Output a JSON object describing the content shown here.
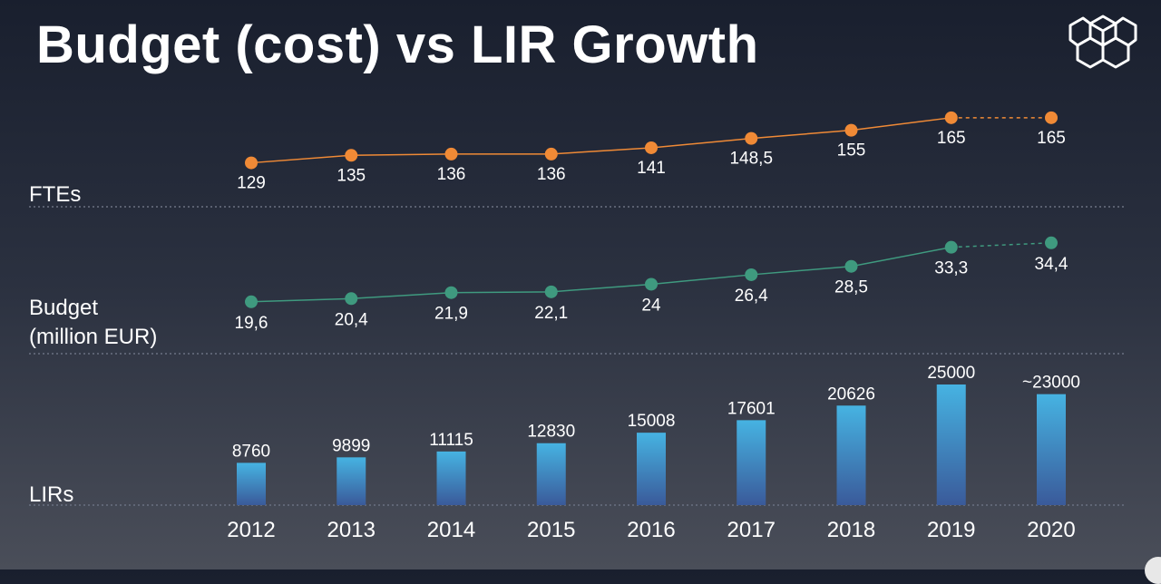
{
  "title": "Budget (cost) vs LIR Growth",
  "labels": {
    "ftes": "FTEs",
    "budget_line1": "Budget",
    "budget_line2": "(million EUR)",
    "lirs": "LIRs"
  },
  "colors": {
    "ftes": "#f08a36",
    "budget": "#3f9a7f",
    "bar_top": "#46b3e2",
    "bar_bottom": "#3a5a9a",
    "divider": "#6b7182"
  },
  "icons": {
    "logo": "ripe-ncc-cube-logo-icon"
  },
  "chart_data": {
    "type": "line+bar",
    "categories": [
      "2012",
      "2013",
      "2014",
      "2015",
      "2016",
      "2017",
      "2018",
      "2019",
      "2020"
    ],
    "series": [
      {
        "name": "FTEs",
        "type": "line",
        "values": [
          129,
          135,
          136,
          136,
          141,
          148.5,
          155,
          165,
          165
        ],
        "value_labels": [
          "129",
          "135",
          "136",
          "136",
          "141",
          "148,5",
          "155",
          "165",
          "165"
        ],
        "dashed_last_segment": true,
        "ylim": [
          120,
          175
        ]
      },
      {
        "name": "Budget (million EUR)",
        "type": "line",
        "values": [
          19.6,
          20.4,
          21.9,
          22.1,
          24,
          26.4,
          28.5,
          33.3,
          34.4
        ],
        "value_labels": [
          "19,6",
          "20,4",
          "21,9",
          "22,1",
          "24",
          "26,4",
          "28,5",
          "33,3",
          "34,4"
        ],
        "dashed_last_segment": true,
        "ylim": [
          15,
          38
        ]
      },
      {
        "name": "LIRs",
        "type": "bar",
        "values": [
          8760,
          9899,
          11115,
          12830,
          15008,
          17601,
          20626,
          25000,
          23000
        ],
        "value_labels": [
          "8760",
          "9899",
          "11115",
          "12830",
          "15008",
          "17601",
          "20626",
          "25000",
          "~23000"
        ],
        "ylim": [
          0,
          28000
        ]
      }
    ]
  }
}
